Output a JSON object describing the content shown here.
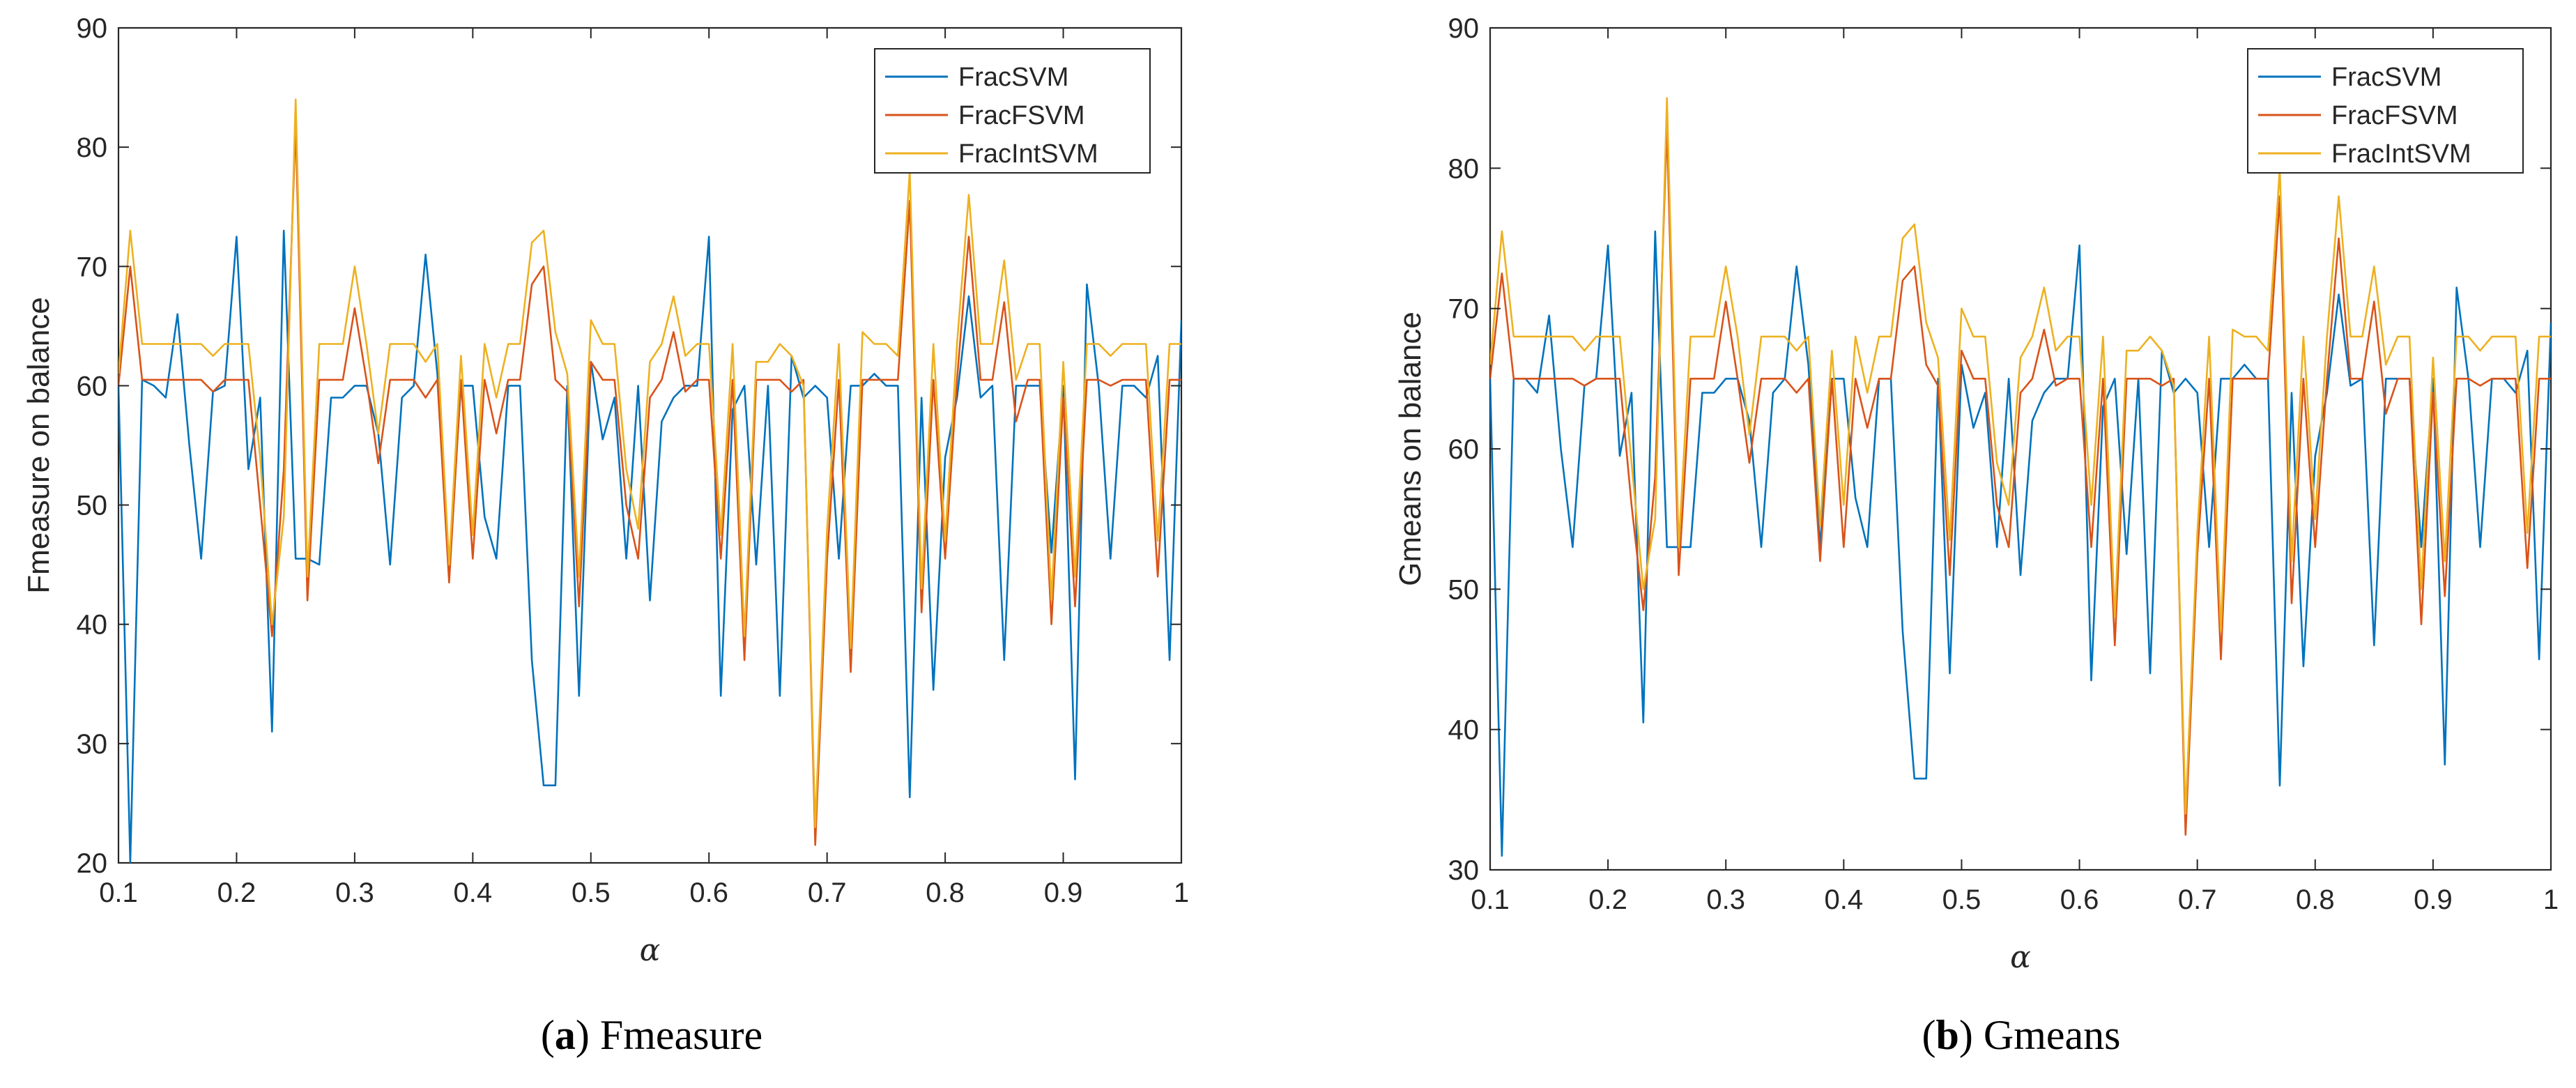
{
  "chart_data": [
    {
      "type": "line",
      "panel": "a",
      "caption_letter": "a",
      "caption_text": "Fmeasure",
      "title": "",
      "xlabel": "α",
      "ylabel": "Fmeasure  on balance",
      "xlim": [
        0.1,
        1
      ],
      "ylim": [
        20,
        90
      ],
      "xticks": [
        0.1,
        0.2,
        0.3,
        0.4,
        0.5,
        0.6,
        0.7,
        0.8,
        0.9,
        1
      ],
      "xtick_labels": [
        "0.1",
        "0.2",
        "0.3",
        "0.4",
        "0.5",
        "0.6",
        "0.7",
        "0.8",
        "0.9",
        "1"
      ],
      "yticks": [
        20,
        30,
        40,
        50,
        60,
        70,
        80,
        90
      ],
      "ytick_labels": [
        "20",
        "30",
        "40",
        "50",
        "60",
        "70",
        "80",
        "90"
      ],
      "legend_position": "top-right",
      "x": [
        0.1,
        0.11,
        0.12,
        0.13,
        0.14,
        0.15,
        0.16,
        0.17,
        0.18,
        0.19,
        0.2,
        0.21,
        0.22,
        0.23,
        0.24,
        0.25,
        0.26,
        0.27,
        0.28,
        0.29,
        0.3,
        0.31,
        0.32,
        0.33,
        0.34,
        0.35,
        0.36,
        0.37,
        0.38,
        0.39,
        0.4,
        0.41,
        0.42,
        0.43,
        0.44,
        0.45,
        0.46,
        0.47,
        0.48,
        0.49,
        0.5,
        0.51,
        0.52,
        0.53,
        0.54,
        0.55,
        0.56,
        0.57,
        0.58,
        0.59,
        0.6,
        0.61,
        0.62,
        0.63,
        0.64,
        0.65,
        0.66,
        0.67,
        0.68,
        0.69,
        0.7,
        0.71,
        0.72,
        0.73,
        0.74,
        0.75,
        0.76,
        0.77,
        0.78,
        0.79,
        0.8,
        0.81,
        0.82,
        0.83,
        0.84,
        0.85,
        0.86,
        0.87,
        0.88,
        0.89,
        0.9,
        0.91,
        0.92,
        0.93,
        0.94,
        0.95,
        0.96,
        0.97,
        0.98,
        0.99,
        1.0
      ],
      "series": [
        {
          "name": "FracSVM",
          "color": "#0072BD",
          "values": [
            60,
            20,
            60.5,
            60,
            59,
            66,
            55,
            45.5,
            59.5,
            60,
            72.5,
            53,
            59,
            31,
            73,
            45.5,
            45.5,
            45,
            59,
            59,
            60,
            60,
            56,
            45,
            59,
            60,
            71,
            61,
            45,
            60,
            60,
            49,
            45.5,
            60,
            60,
            37,
            26.5,
            26.5,
            60,
            34,
            62,
            55.5,
            59,
            45.5,
            60,
            42,
            57,
            59,
            60,
            60,
            72.5,
            34,
            58,
            60,
            45,
            60,
            34,
            62.5,
            59,
            60,
            59,
            45.5,
            60,
            60,
            61,
            60,
            60,
            25.5,
            59,
            34.5,
            54,
            59,
            67.5,
            59,
            60,
            37,
            60,
            60,
            60,
            46,
            60,
            27,
            68.5,
            60,
            45.5,
            60,
            60,
            59,
            62.5,
            37,
            65.5
          ]
        },
        {
          "name": "FracFSVM",
          "color": "#D95319",
          "values": [
            60,
            70,
            60.5,
            60.5,
            60.5,
            60.5,
            60.5,
            60.5,
            59.5,
            60.5,
            60.5,
            60.5,
            50,
            39,
            53,
            82,
            42,
            60.5,
            60.5,
            60.5,
            66.5,
            60.5,
            53.5,
            60.5,
            60.5,
            60.5,
            59,
            60.5,
            43.5,
            60.5,
            45.5,
            60.5,
            56,
            60.5,
            60.5,
            68.5,
            70,
            60.5,
            59.5,
            41.5,
            62,
            60.5,
            60.5,
            50,
            45.5,
            59,
            60.5,
            64.5,
            59.5,
            60.5,
            60.5,
            45.5,
            60.5,
            37,
            60.5,
            60.5,
            60.5,
            59.5,
            60.5,
            21.5,
            45.5,
            60.5,
            36,
            60.5,
            60.5,
            60.5,
            60.5,
            75.5,
            41,
            60.5,
            45.5,
            60.5,
            72.5,
            60.5,
            60.5,
            67,
            57,
            60.5,
            60.5,
            40,
            59,
            41.5,
            60.5,
            60.5,
            60,
            60.5,
            60.5,
            60.5,
            44,
            60.5,
            60.5
          ]
        },
        {
          "name": "FracIntSVM",
          "color": "#EDB120",
          "values": [
            61,
            73,
            63.5,
            63.5,
            63.5,
            63.5,
            63.5,
            63.5,
            62.5,
            63.5,
            63.5,
            63.5,
            54,
            40,
            49,
            84,
            44,
            63.5,
            63.5,
            63.5,
            70,
            63.5,
            56,
            63.5,
            63.5,
            63.5,
            62,
            63.5,
            45,
            62.5,
            47.5,
            63.5,
            59,
            63.5,
            63.5,
            72,
            73,
            64.5,
            61,
            44,
            65.5,
            63.5,
            63.5,
            53,
            48,
            62,
            63.5,
            67.5,
            62.5,
            63.5,
            63.5,
            47.5,
            63.5,
            39,
            62,
            62,
            63.5,
            62.5,
            60,
            23,
            48,
            63.5,
            38,
            64.5,
            63.5,
            63.5,
            62.5,
            78,
            43,
            63.5,
            47,
            63.5,
            76,
            63.5,
            63.5,
            70.5,
            60.5,
            63.5,
            63.5,
            42,
            62,
            44,
            63.5,
            63.5,
            62.5,
            63.5,
            63.5,
            63.5,
            47,
            63.5,
            63.5
          ]
        }
      ]
    },
    {
      "type": "line",
      "panel": "b",
      "caption_letter": "b",
      "caption_text": "Gmeans",
      "title": "",
      "xlabel": "α",
      "ylabel": "Gmeans on balance",
      "xlim": [
        0.1,
        1
      ],
      "ylim": [
        30,
        90
      ],
      "xticks": [
        0.1,
        0.2,
        0.3,
        0.4,
        0.5,
        0.6,
        0.7,
        0.8,
        0.9,
        1
      ],
      "xtick_labels": [
        "0.1",
        "0.2",
        "0.3",
        "0.4",
        "0.5",
        "0.6",
        "0.7",
        "0.8",
        "0.9",
        "1"
      ],
      "yticks": [
        30,
        40,
        50,
        60,
        70,
        80,
        90
      ],
      "ytick_labels": [
        "30",
        "40",
        "50",
        "60",
        "70",
        "80",
        "90"
      ],
      "legend_position": "top-right",
      "x": [
        0.1,
        0.11,
        0.12,
        0.13,
        0.14,
        0.15,
        0.16,
        0.17,
        0.18,
        0.19,
        0.2,
        0.21,
        0.22,
        0.23,
        0.24,
        0.25,
        0.26,
        0.27,
        0.28,
        0.29,
        0.3,
        0.31,
        0.32,
        0.33,
        0.34,
        0.35,
        0.36,
        0.37,
        0.38,
        0.39,
        0.4,
        0.41,
        0.42,
        0.43,
        0.44,
        0.45,
        0.46,
        0.47,
        0.48,
        0.49,
        0.5,
        0.51,
        0.52,
        0.53,
        0.54,
        0.55,
        0.56,
        0.57,
        0.58,
        0.59,
        0.6,
        0.61,
        0.62,
        0.63,
        0.64,
        0.65,
        0.66,
        0.67,
        0.68,
        0.69,
        0.7,
        0.71,
        0.72,
        0.73,
        0.74,
        0.75,
        0.76,
        0.77,
        0.78,
        0.79,
        0.8,
        0.81,
        0.82,
        0.83,
        0.84,
        0.85,
        0.86,
        0.87,
        0.88,
        0.89,
        0.9,
        0.91,
        0.92,
        0.93,
        0.94,
        0.95,
        0.96,
        0.97,
        0.98,
        0.99,
        1.0
      ],
      "series": [
        {
          "name": "FracSVM",
          "color": "#0072BD",
          "values": [
            65,
            31,
            65,
            65,
            64,
            69.5,
            60,
            53,
            64.5,
            65,
            74.5,
            59.5,
            64,
            40.5,
            75.5,
            53,
            53,
            53,
            64,
            64,
            65,
            65,
            62,
            53,
            64,
            65,
            73,
            66,
            53,
            65,
            65,
            56.5,
            53,
            65,
            65,
            47,
            36.5,
            36.5,
            65,
            44,
            66,
            61.5,
            64,
            53,
            65,
            51,
            62,
            64,
            65,
            65,
            74.5,
            43.5,
            63,
            65,
            52.5,
            65,
            44,
            67,
            64,
            65,
            64,
            53,
            65,
            65,
            66,
            65,
            65,
            36,
            64,
            44.5,
            59.5,
            64,
            71,
            64.5,
            65,
            46,
            65,
            65,
            65,
            53,
            65,
            37.5,
            71.5,
            65,
            53,
            65,
            65,
            64,
            67,
            45,
            69
          ]
        },
        {
          "name": "FracFSVM",
          "color": "#D95319",
          "values": [
            65,
            72.5,
            65,
            65,
            65,
            65,
            65,
            65,
            64.5,
            65,
            65,
            65,
            56,
            48.5,
            58,
            83,
            51,
            65,
            65,
            65,
            70.5,
            65,
            59,
            65,
            65,
            65,
            64,
            65,
            52,
            65,
            53,
            65,
            61.5,
            65,
            65,
            72,
            73,
            66,
            64.5,
            51,
            67,
            65,
            65,
            56,
            53,
            64,
            65,
            68.5,
            64.5,
            65,
            65,
            53,
            65,
            46,
            65,
            65,
            65,
            64.5,
            65,
            32.5,
            52.5,
            65,
            45,
            65,
            65,
            65,
            65,
            78,
            49,
            65,
            53,
            65,
            75,
            65,
            65,
            70.5,
            62.5,
            65,
            65,
            47.5,
            64,
            49.5,
            65,
            65,
            64.5,
            65,
            65,
            65,
            51.5,
            65,
            65
          ]
        },
        {
          "name": "FracIntSVM",
          "color": "#EDB120",
          "values": [
            66,
            75.5,
            68,
            68,
            68,
            68,
            68,
            68,
            67,
            68,
            68,
            68,
            59,
            50,
            55,
            85,
            53,
            68,
            68,
            68,
            73,
            68,
            61,
            68,
            68,
            68,
            67,
            68,
            54.5,
            67,
            56,
            68,
            64,
            68,
            68,
            75,
            76,
            69,
            66.5,
            53.5,
            70,
            68,
            68,
            59,
            56,
            66.5,
            68,
            71.5,
            67,
            68,
            68,
            56,
            68,
            48,
            67,
            67,
            68,
            67,
            64.5,
            34,
            54,
            68,
            47,
            68.5,
            68,
            68,
            67,
            80,
            52,
            68,
            55,
            68,
            78,
            68,
            68,
            73,
            66,
            68,
            68,
            50,
            66.5,
            52,
            68,
            68,
            67,
            68,
            68,
            68,
            54,
            68,
            68
          ]
        }
      ]
    }
  ]
}
